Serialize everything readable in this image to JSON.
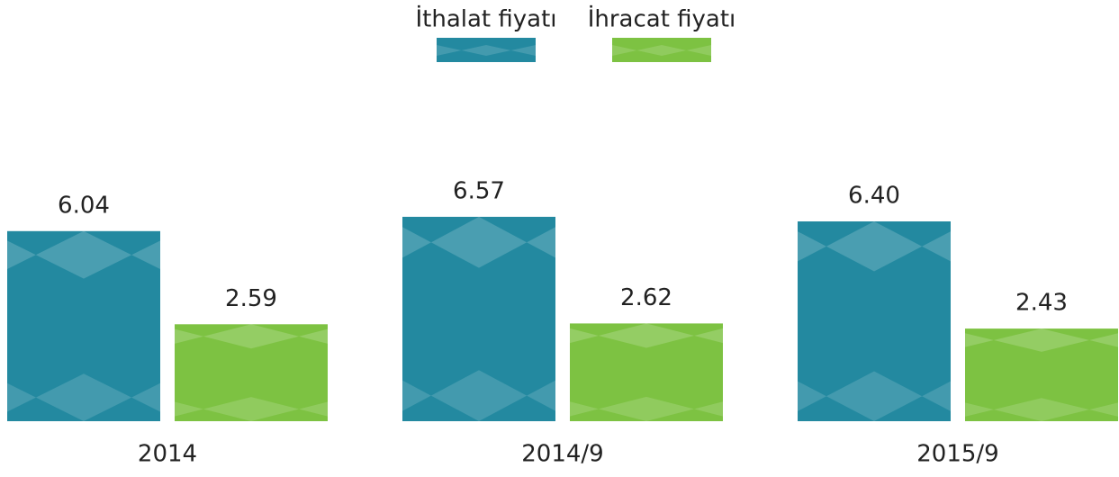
{
  "chart_data": {
    "type": "bar",
    "categories": [
      "2014",
      "2014/9",
      "2015/9"
    ],
    "series": [
      {
        "name": "İthalat fiyatı",
        "color": "#2389a0",
        "values": [
          6.04,
          6.57,
          6.4
        ],
        "value_labels": [
          "6.04",
          "6.57",
          "6.40"
        ]
      },
      {
        "name": "İhracat fiyatı",
        "color": "#7dc242",
        "values": [
          2.59,
          2.62,
          2.43
        ],
        "value_labels": [
          "2.59",
          "2.62",
          "2.43"
        ]
      }
    ],
    "ylim": [
      -1,
      8
    ],
    "legend": "top"
  }
}
